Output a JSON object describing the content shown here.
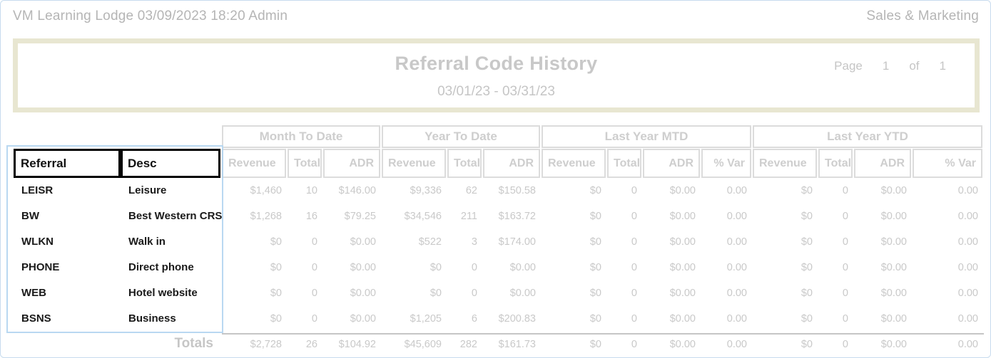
{
  "page_header": {
    "left": "VM Learning Lodge 03/09/2023 18:20  Admin",
    "right": "Sales & Marketing"
  },
  "title_block": {
    "title": "Referral Code History",
    "page_label": "Page",
    "page_number": "1",
    "of_label": "of",
    "page_total": "1",
    "date_range": "03/01/23 - 03/31/23"
  },
  "table": {
    "row_headers": [
      {
        "label": "Referral"
      },
      {
        "label": "Desc"
      }
    ],
    "groups": [
      {
        "label": "Month To Date",
        "columns": [
          "Revenue",
          "Total",
          "ADR"
        ]
      },
      {
        "label": "Year To Date",
        "columns": [
          "Revenue",
          "Total",
          "ADR"
        ]
      },
      {
        "label": "Last Year MTD",
        "columns": [
          "Revenue",
          "Total",
          "ADR",
          "% Var"
        ]
      },
      {
        "label": "Last Year YTD",
        "columns": [
          "Revenue",
          "Total",
          "ADR",
          "% Var"
        ]
      }
    ],
    "rows": [
      {
        "referral": "LEISR",
        "desc": "Leisure",
        "values": [
          "$1,460",
          "10",
          "$146.00",
          "$9,336",
          "62",
          "$150.58",
          "$0",
          "0",
          "$0.00",
          "0.00",
          "$0",
          "0",
          "$0.00",
          "0.00"
        ]
      },
      {
        "referral": "BW",
        "desc": "Best Western CRS",
        "values": [
          "$1,268",
          "16",
          "$79.25",
          "$34,546",
          "211",
          "$163.72",
          "$0",
          "0",
          "$0.00",
          "0.00",
          "$0",
          "0",
          "$0.00",
          "0.00"
        ]
      },
      {
        "referral": "WLKN",
        "desc": "Walk in",
        "values": [
          "$0",
          "0",
          "$0.00",
          "$522",
          "3",
          "$174.00",
          "$0",
          "0",
          "$0.00",
          "0.00",
          "$0",
          "0",
          "$0.00",
          "0.00"
        ]
      },
      {
        "referral": "PHONE",
        "desc": "Direct phone",
        "values": [
          "$0",
          "0",
          "$0.00",
          "$0",
          "0",
          "$0.00",
          "$0",
          "0",
          "$0.00",
          "0.00",
          "$0",
          "0",
          "$0.00",
          "0.00"
        ]
      },
      {
        "referral": "WEB",
        "desc": "Hotel website",
        "values": [
          "$0",
          "0",
          "$0.00",
          "$0",
          "0",
          "$0.00",
          "$0",
          "0",
          "$0.00",
          "0.00",
          "$0",
          "0",
          "$0.00",
          "0.00"
        ]
      },
      {
        "referral": "BSNS",
        "desc": "Business",
        "values": [
          "$0",
          "0",
          "$0.00",
          "$1,205",
          "6",
          "$200.83",
          "$0",
          "0",
          "$0.00",
          "0.00",
          "$0",
          "0",
          "$0.00",
          "0.00"
        ]
      }
    ],
    "totals": {
      "label": "Totals",
      "values": [
        "$2,728",
        "26",
        "$104.92",
        "$45,609",
        "282",
        "$161.73",
        "$0",
        "0",
        "$0.00",
        "0.00",
        "$0",
        "0",
        "$0.00",
        "0.00"
      ]
    }
  },
  "colors": {
    "accent_beige": "#e8e6d1",
    "selection_blue": "#b9d8f1",
    "page_border_blue": "#c7dbee",
    "muted_gray_text": "#c9c9c9",
    "header_gray_text": "#b5b5b5",
    "cell_border_gray": "#dcdcdc",
    "selected_header_black": "#000000"
  }
}
